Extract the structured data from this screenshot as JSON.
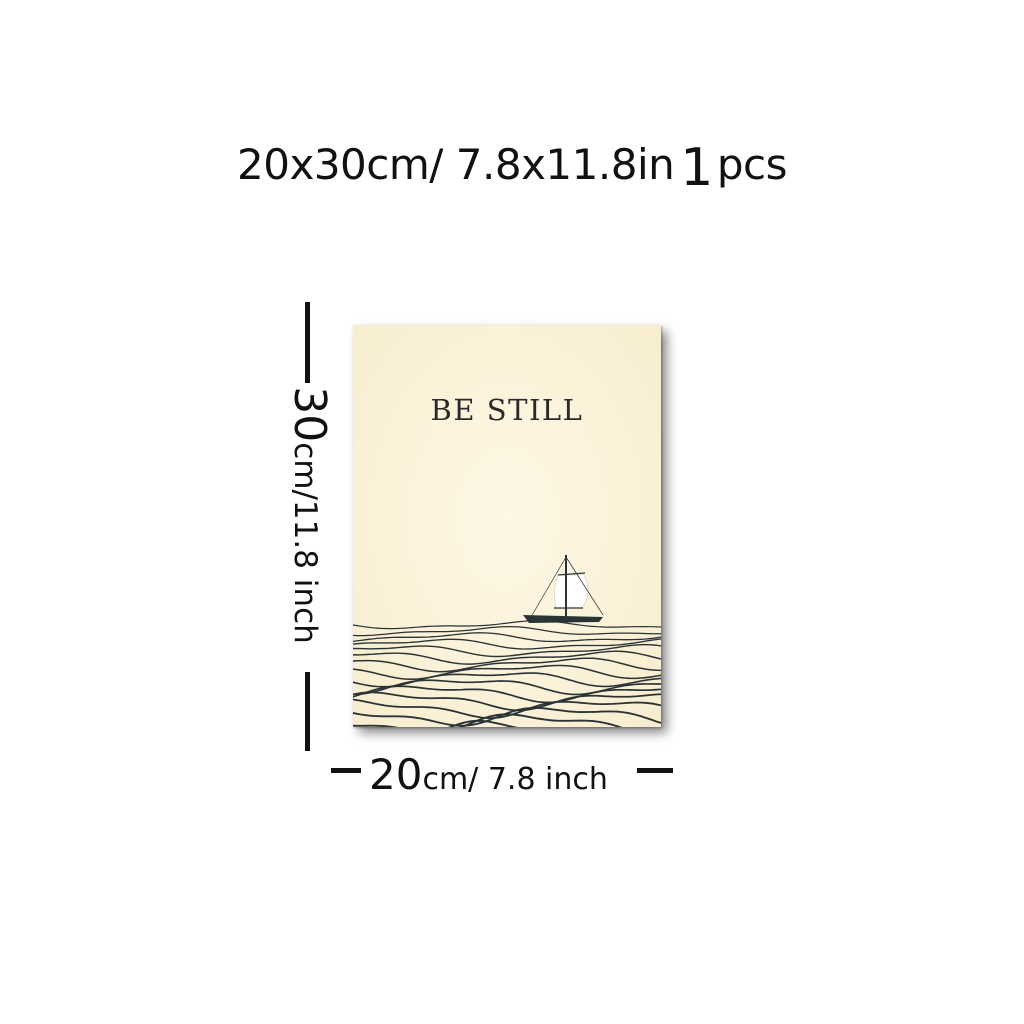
{
  "header": {
    "size_text": "20x30cm/ 7.8x11.8in",
    "qty_number": "1",
    "qty_unit": "pcs"
  },
  "poster": {
    "title": "BE STILL",
    "background_color": "#fbf2d9",
    "ink_color": "#2a3336"
  },
  "height_label": {
    "value": "30",
    "unit_text": "cm/11.8 inch"
  },
  "width_label": {
    "value": "20",
    "unit_text": "cm/ 7.8 inch"
  }
}
